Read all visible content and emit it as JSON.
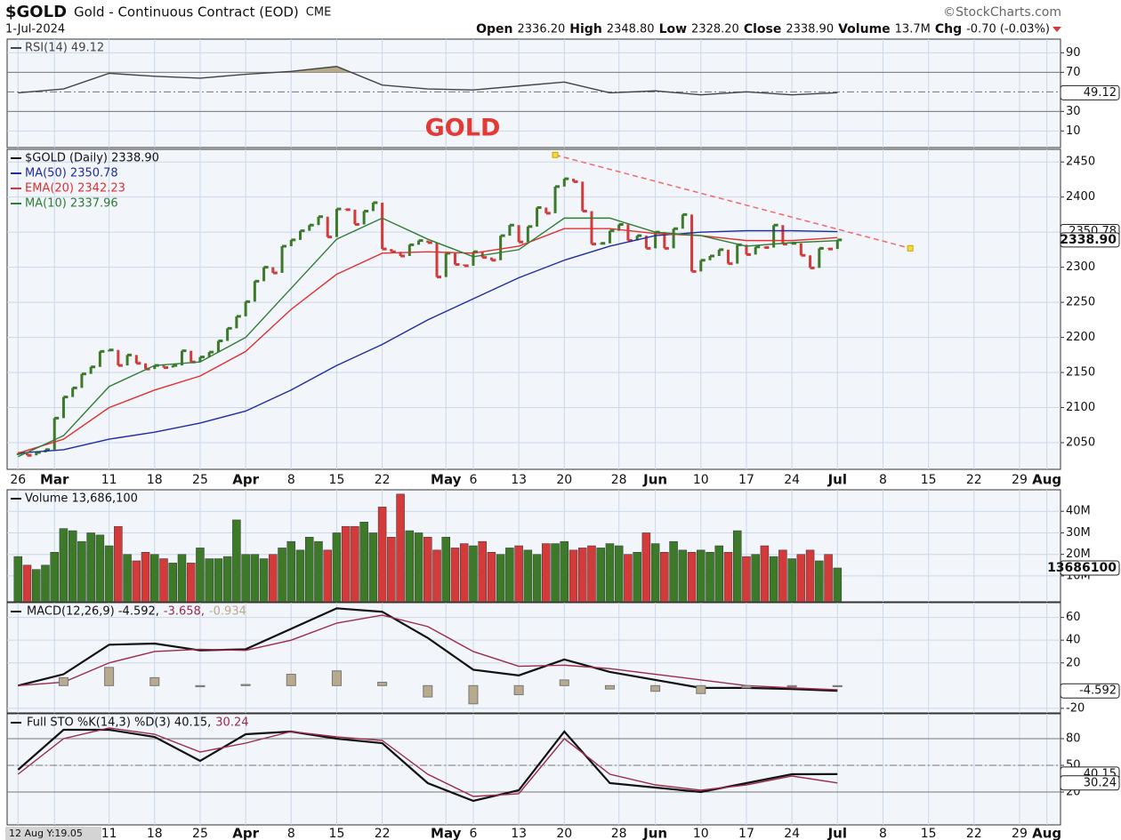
{
  "header": {
    "symbol": "$GOLD",
    "name": "Gold - Continuous Contract (EOD)",
    "exchange": "CME",
    "source": "©StockCharts.com",
    "date": "1-Jul-2024",
    "quote": [
      {
        "label": "Open",
        "value": "2336.20"
      },
      {
        "label": "High",
        "value": "2348.80"
      },
      {
        "label": "Low",
        "value": "2328.20"
      },
      {
        "label": "Close",
        "value": "2338.90"
      },
      {
        "label": "Volume",
        "value": "13.7M"
      },
      {
        "label": "Chg",
        "value": "-0.70 (-0.03%)"
      }
    ]
  },
  "chart_data": [
    {
      "type": "line",
      "annotation": "GOLD",
      "ylim": [
        -7,
        104
      ],
      "yticks": [
        10,
        30,
        70,
        90
      ],
      "levels": [
        30,
        70
      ],
      "dashed_levels": [
        50
      ],
      "legend_layout": "column",
      "tags": [
        49.12
      ],
      "series": [
        {
          "name": "RSI(14) 49.12",
          "color": "#444444",
          "fill": "#b9a98b",
          "x": [
            0,
            5,
            10,
            15,
            20,
            25,
            30,
            35,
            40,
            45,
            50,
            55,
            60,
            65,
            70,
            75,
            80,
            85,
            90
          ],
          "values": [
            49,
            53,
            69,
            66,
            64,
            68,
            71,
            76,
            57,
            53,
            52,
            56,
            60,
            49,
            51,
            47,
            50,
            47,
            49.12
          ]
        }
      ]
    },
    {
      "type": "ohlc",
      "ylim": [
        2012,
        2468
      ],
      "yticks": [
        2050,
        2100,
        2150,
        2200,
        2250,
        2300,
        2350,
        2400,
        2450
      ],
      "legend_layout": "column",
      "xlim": [
        -1.2,
        114.5
      ],
      "xticks": [
        {
          "value": 0,
          "label": "26"
        },
        {
          "value": 4,
          "label": "Mar"
        },
        {
          "value": 10,
          "label": "11"
        },
        {
          "value": 15,
          "label": "18"
        },
        {
          "value": 20,
          "label": "25"
        },
        {
          "value": 25,
          "label": "Apr"
        },
        {
          "value": 30,
          "label": "8"
        },
        {
          "value": 35,
          "label": "15"
        },
        {
          "value": 40,
          "label": "22"
        },
        {
          "value": 47,
          "label": "May"
        },
        {
          "value": 50,
          "label": "6"
        },
        {
          "value": 55,
          "label": "13"
        },
        {
          "value": 60,
          "label": "20"
        },
        {
          "value": 66,
          "label": "28"
        },
        {
          "value": 70,
          "label": "Jun"
        },
        {
          "value": 75,
          "label": "10"
        },
        {
          "value": 80,
          "label": "17"
        },
        {
          "value": 85,
          "label": "24"
        },
        {
          "value": 90,
          "label": "Jul"
        },
        {
          "value": 95,
          "label": "8"
        },
        {
          "value": 100,
          "label": "15"
        },
        {
          "value": 105,
          "label": "22"
        },
        {
          "value": 110,
          "label": "29"
        },
        {
          "value": 113,
          "label": "Aug"
        }
      ],
      "tags": [
        2350.78,
        {
          "value": 2338.9,
          "label": "2338.90"
        }
      ],
      "trendline": {
        "x": [
          59,
          98
        ],
        "y": [
          2460,
          2327
        ],
        "color": "#f26a6a",
        "end_color": "#f5d742"
      },
      "series": [
        {
          "name": "$GOLD (Daily) 2338.90",
          "up_color": "#3c7a2a",
          "down_color": "#d33a3a",
          "x": [
            0,
            1,
            2,
            3,
            4,
            5,
            6,
            7,
            8,
            9,
            10,
            11,
            12,
            13,
            14,
            15,
            16,
            17,
            18,
            19,
            20,
            21,
            22,
            23,
            24,
            25,
            26,
            27,
            28,
            29,
            30,
            31,
            32,
            33,
            34,
            35,
            36,
            37,
            38,
            39,
            40,
            41,
            42,
            43,
            44,
            45,
            46,
            47,
            48,
            49,
            50,
            51,
            52,
            53,
            54,
            55,
            56,
            57,
            58,
            59,
            60,
            61,
            62,
            63,
            64,
            65,
            66,
            67,
            68,
            69,
            70,
            71,
            72,
            73,
            74,
            75,
            76,
            77,
            78,
            79,
            80,
            81,
            82,
            83,
            84,
            85,
            86,
            87,
            88,
            89,
            90
          ],
          "values": [
            2035,
            2032,
            2036,
            2040,
            2085,
            2115,
            2128,
            2148,
            2158,
            2180,
            2182,
            2160,
            2175,
            2163,
            2155,
            2160,
            2157,
            2160,
            2181,
            2165,
            2172,
            2179,
            2195,
            2213,
            2230,
            2251,
            2280,
            2300,
            2292,
            2330,
            2339,
            2352,
            2360,
            2372,
            2343,
            2383,
            2382,
            2361,
            2380,
            2392,
            2326,
            2322,
            2316,
            2332,
            2338,
            2335,
            2286,
            2320,
            2304,
            2302,
            2322,
            2314,
            2310,
            2345,
            2360,
            2336,
            2358,
            2385,
            2377,
            2415,
            2426,
            2422,
            2380,
            2333,
            2334,
            2352,
            2361,
            2338,
            2345,
            2327,
            2350,
            2327,
            2355,
            2375,
            2294,
            2310,
            2316,
            2325,
            2305,
            2332,
            2318,
            2329,
            2328,
            2360,
            2333,
            2334,
            2317,
            2299,
            2327,
            2326,
            2338.9
          ]
        },
        {
          "name": "MA(50) 2350.78",
          "color": "#1f2c9e",
          "x": [
            0,
            5,
            10,
            15,
            20,
            25,
            30,
            35,
            40,
            45,
            50,
            55,
            60,
            65,
            70,
            75,
            80,
            85,
            90
          ],
          "values": [
            2035,
            2040,
            2055,
            2065,
            2078,
            2095,
            2125,
            2160,
            2190,
            2225,
            2255,
            2285,
            2310,
            2330,
            2345,
            2350,
            2352,
            2352,
            2350.78
          ]
        },
        {
          "name": "EMA(20) 2342.23",
          "color": "#e03131",
          "x": [
            0,
            5,
            10,
            15,
            20,
            25,
            30,
            35,
            40,
            45,
            50,
            55,
            60,
            65,
            70,
            75,
            80,
            85,
            90
          ],
          "values": [
            2035,
            2055,
            2100,
            2125,
            2145,
            2180,
            2240,
            2290,
            2320,
            2322,
            2320,
            2330,
            2355,
            2355,
            2348,
            2345,
            2338,
            2338,
            2342.23
          ]
        },
        {
          "name": "MA(10) 2337.96",
          "color": "#2f7d32",
          "x": [
            0,
            5,
            10,
            15,
            20,
            25,
            30,
            35,
            40,
            45,
            50,
            55,
            60,
            65,
            70,
            75,
            80,
            85,
            90
          ],
          "values": [
            2030,
            2060,
            2130,
            2160,
            2165,
            2200,
            2270,
            2340,
            2370,
            2340,
            2315,
            2325,
            2370,
            2370,
            2350,
            2345,
            2330,
            2335,
            2337.96
          ]
        }
      ]
    },
    {
      "type": "bar",
      "ylim": [
        -2,
        50
      ],
      "yticks": [
        {
          "value": 10,
          "label": "10M"
        },
        {
          "value": 20,
          "label": "20M"
        },
        {
          "value": 30,
          "label": "30M"
        },
        {
          "value": 40,
          "label": "40M"
        }
      ],
      "legend_layout": "column",
      "tags": [
        {
          "value": 13.6861,
          "label": "13686100"
        }
      ],
      "series": [
        {
          "name": "Volume 13,686,100",
          "x": [
            0,
            1,
            2,
            3,
            4,
            5,
            6,
            7,
            8,
            9,
            10,
            11,
            12,
            13,
            14,
            15,
            16,
            17,
            18,
            19,
            20,
            21,
            22,
            23,
            24,
            25,
            26,
            27,
            28,
            29,
            30,
            31,
            32,
            33,
            34,
            35,
            36,
            37,
            38,
            39,
            40,
            41,
            42,
            43,
            44,
            45,
            46,
            47,
            48,
            49,
            50,
            51,
            52,
            53,
            54,
            55,
            56,
            57,
            58,
            59,
            60,
            61,
            62,
            63,
            64,
            65,
            66,
            67,
            68,
            69,
            70,
            71,
            72,
            73,
            74,
            75,
            76,
            77,
            78,
            79,
            80,
            81,
            82,
            83,
            84,
            85,
            86,
            87,
            88,
            89,
            90
          ],
          "values": [
            19,
            15,
            13,
            15,
            21,
            32,
            31,
            26,
            30,
            29,
            24,
            33,
            20,
            17,
            21,
            20,
            18,
            16,
            20,
            16,
            23,
            18,
            18,
            19,
            36,
            20,
            20,
            18,
            20,
            23,
            26,
            22,
            28,
            26,
            22,
            30,
            33,
            33,
            35,
            30,
            42,
            28,
            48,
            31,
            30,
            28,
            22,
            28,
            23,
            25,
            24,
            26,
            21,
            20,
            23,
            24,
            22,
            20,
            25,
            25,
            26,
            22,
            23,
            24,
            23,
            25,
            24,
            20,
            21,
            30,
            25,
            21,
            26,
            22,
            21,
            22,
            21,
            24,
            21,
            31,
            19,
            20,
            24,
            19,
            22,
            18,
            20,
            22,
            17,
            20,
            13.6861
          ]
        }
      ]
    },
    {
      "type": "line",
      "ylim": [
        -24,
        73
      ],
      "yticks": [
        -20,
        20,
        40,
        60
      ],
      "legend_layout": "row",
      "tags": [
        -4.592
      ],
      "series": [
        {
          "name": "MACD(12,26,9) -4.592,",
          "color": "#111111",
          "width": 2.2,
          "x": [
            0,
            5,
            10,
            15,
            20,
            25,
            30,
            35,
            40,
            45,
            50,
            55,
            60,
            65,
            70,
            75,
            80,
            85,
            90
          ],
          "values": [
            0,
            10,
            36,
            37,
            31,
            32,
            50,
            68,
            65,
            42,
            14,
            9,
            23,
            12,
            5,
            -2,
            -2,
            -3,
            -4.592
          ]
        },
        {
          "name": "-3.658,",
          "color": "#9b2a4a",
          "x": [
            0,
            5,
            10,
            15,
            20,
            25,
            30,
            35,
            40,
            45,
            50,
            55,
            60,
            65,
            70,
            75,
            80,
            85,
            90
          ],
          "values": [
            0,
            3,
            20,
            30,
            32,
            31,
            40,
            55,
            62,
            52,
            30,
            17,
            18,
            15,
            10,
            5,
            0,
            -2,
            -3.658
          ]
        },
        {
          "name": "-0.934",
          "color": "#b8aa8e",
          "style": "histogram",
          "x": [
            0,
            5,
            10,
            15,
            20,
            25,
            30,
            35,
            40,
            45,
            50,
            55,
            60,
            65,
            70,
            75,
            80,
            85,
            90
          ],
          "values": [
            0,
            7,
            16,
            7,
            -1,
            1,
            10,
            13,
            3,
            -10,
            -16,
            -8,
            5,
            -3,
            -5,
            -7,
            -2,
            -1,
            -0.934
          ]
        }
      ]
    },
    {
      "type": "line",
      "cursor": "12 Aug Y:19.05",
      "ylim": [
        -17,
        108
      ],
      "yticks": [
        20,
        50,
        80
      ],
      "levels": [
        20,
        80
      ],
      "dashed_levels": [
        50
      ],
      "legend_layout": "row",
      "tags": [
        40.15,
        30.24
      ],
      "series": [
        {
          "name": "Full STO %K(14,3) %D(3) 40.15,",
          "color": "#111111",
          "width": 2.2,
          "x": [
            0,
            5,
            10,
            15,
            20,
            25,
            30,
            35,
            40,
            45,
            50,
            55,
            60,
            65,
            70,
            75,
            80,
            85,
            90
          ],
          "values": [
            45,
            90,
            90,
            82,
            55,
            85,
            88,
            80,
            75,
            30,
            10,
            22,
            88,
            30,
            25,
            20,
            30,
            40,
            40.15
          ]
        },
        {
          "name": "30.24",
          "color": "#9b2a4a",
          "x": [
            0,
            5,
            10,
            15,
            20,
            25,
            30,
            35,
            40,
            45,
            50,
            55,
            60,
            65,
            70,
            75,
            80,
            85,
            90
          ],
          "values": [
            40,
            80,
            92,
            85,
            65,
            75,
            88,
            82,
            78,
            40,
            15,
            18,
            80,
            40,
            28,
            22,
            28,
            38,
            30.24
          ]
        }
      ]
    }
  ]
}
